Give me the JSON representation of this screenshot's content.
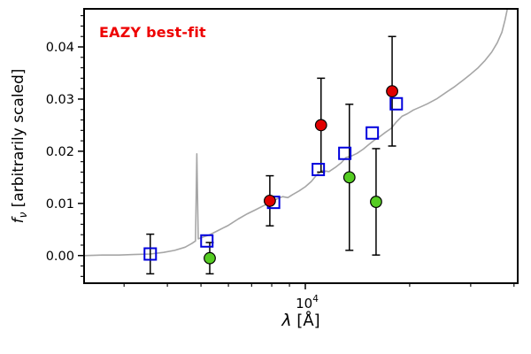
{
  "chart_data": {
    "type": "line+scatter",
    "x_scale": "log",
    "grid": false,
    "legend": "none",
    "annotation": {
      "text": "EAZY best-fit",
      "color": "#ee0000"
    },
    "xlabel": {
      "text": "λ [Å]",
      "symbol": "λ",
      "rest": " [Å]"
    },
    "ylabel": {
      "text": "f_ν [arbitrarily scaled]",
      "symbol": "f",
      "sub": "ν",
      "rest": " [arbitrarily scaled]"
    },
    "xlim": [
      2300,
      41000
    ],
    "ylim": [
      -0.0053,
      0.0473
    ],
    "xaxis": {
      "major_ticks": [
        10000
      ],
      "major_label": {
        "base": "10",
        "exp": "4"
      },
      "minor_ticks": [
        3000,
        4000,
        5000,
        6000,
        7000,
        8000,
        9000,
        20000,
        30000,
        40000
      ]
    },
    "yaxis": {
      "major_ticks": [
        0,
        0.01,
        0.02,
        0.03,
        0.04
      ],
      "labels": [
        "0.00",
        "0.01",
        "0.02",
        "0.03",
        "0.04"
      ],
      "minor_step": 0.002
    },
    "colors": {
      "spectrum": "#a6a6a6",
      "model_square": "#0000dd",
      "obs_red": "#e00000",
      "obs_green": "#55cc22",
      "errorbar": "#000000",
      "frame": "#000000"
    },
    "series": [
      {
        "name": "model-spectrum",
        "label": "EAZY best-fit template spectrum",
        "type": "line",
        "color": "#a6a6a6",
        "width": 1.6,
        "points": [
          [
            2300,
            0.0
          ],
          [
            2600,
            0.0001
          ],
          [
            2900,
            0.0001
          ],
          [
            3200,
            0.0002
          ],
          [
            3570,
            0.0003
          ],
          [
            3900,
            0.0006
          ],
          [
            4200,
            0.001
          ],
          [
            4500,
            0.0016
          ],
          [
            4700,
            0.0023
          ],
          [
            4820,
            0.0028
          ],
          [
            4865,
            0.0195
          ],
          [
            4910,
            0.0032
          ],
          [
            5100,
            0.0036
          ],
          [
            5300,
            0.004
          ],
          [
            5600,
            0.0048
          ],
          [
            6000,
            0.0058
          ],
          [
            6400,
            0.007
          ],
          [
            6800,
            0.008
          ],
          [
            7200,
            0.0088
          ],
          [
            7600,
            0.0096
          ],
          [
            8000,
            0.0103
          ],
          [
            8300,
            0.0109
          ],
          [
            8600,
            0.0113
          ],
          [
            8900,
            0.0111
          ],
          [
            9200,
            0.0117
          ],
          [
            9600,
            0.0124
          ],
          [
            10000,
            0.0132
          ],
          [
            10400,
            0.0142
          ],
          [
            10800,
            0.0155
          ],
          [
            11200,
            0.0163
          ],
          [
            11700,
            0.0161
          ],
          [
            12200,
            0.0169
          ],
          [
            12700,
            0.0178
          ],
          [
            13100,
            0.0188
          ],
          [
            13600,
            0.0191
          ],
          [
            14100,
            0.0196
          ],
          [
            14700,
            0.0204
          ],
          [
            15200,
            0.0212
          ],
          [
            15800,
            0.0221
          ],
          [
            16400,
            0.0228
          ],
          [
            17000,
            0.0236
          ],
          [
            17700,
            0.0244
          ],
          [
            18300,
            0.0256
          ],
          [
            19000,
            0.0267
          ],
          [
            19700,
            0.0272
          ],
          [
            20500,
            0.0279
          ],
          [
            21500,
            0.0285
          ],
          [
            22500,
            0.0291
          ],
          [
            24000,
            0.0301
          ],
          [
            25500,
            0.0313
          ],
          [
            27000,
            0.0324
          ],
          [
            28500,
            0.0336
          ],
          [
            30000,
            0.0348
          ],
          [
            31500,
            0.036
          ],
          [
            33000,
            0.0374
          ],
          [
            34500,
            0.039
          ],
          [
            35800,
            0.0408
          ],
          [
            36900,
            0.0428
          ],
          [
            37700,
            0.0452
          ],
          [
            38400,
            0.0478
          ],
          [
            39000,
            0.052
          ]
        ]
      },
      {
        "name": "model-photometry",
        "label": "template photometry (open blue squares)",
        "type": "square",
        "color": "#0000dd",
        "size": 13,
        "x": [
          3570,
          5200,
          8100,
          10900,
          13000,
          15600,
          18300
        ],
        "y": [
          0.0003,
          0.0028,
          0.0102,
          0.0165,
          0.0196,
          0.0235,
          0.0291
        ],
        "yerr": [
          0.0038,
          0,
          0,
          0,
          0,
          0,
          0
        ]
      },
      {
        "name": "observed-red",
        "label": "observed photometry (red circles)",
        "type": "circle",
        "color": "#e00000",
        "x": [
          7900,
          11100,
          17800
        ],
        "y": [
          0.0105,
          0.025,
          0.0315
        ],
        "yerr": [
          0.0048,
          0.009,
          0.0105
        ]
      },
      {
        "name": "observed-green",
        "label": "observed photometry (green circles)",
        "type": "circle",
        "color": "#55cc22",
        "x": [
          5300,
          13400,
          16000
        ],
        "y": [
          -0.0005,
          0.015,
          0.0103
        ],
        "yerr": [
          0.003,
          0.014,
          0.0102
        ]
      }
    ]
  }
}
